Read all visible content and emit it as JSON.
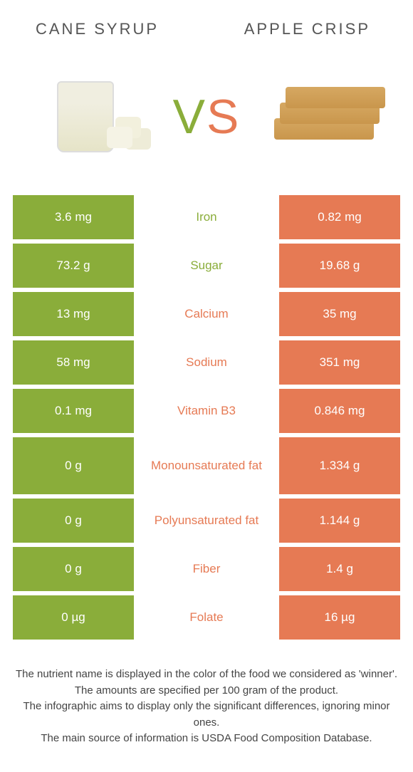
{
  "left_food": "cane syrup",
  "right_food": "Apple crisp",
  "vs_letters": {
    "v": "V",
    "s": "S"
  },
  "colors": {
    "left": "#8aad3a",
    "right": "#e67a54",
    "text": "#555555",
    "footer": "#444444",
    "bg": "#ffffff"
  },
  "rows": [
    {
      "nutrient": "Iron",
      "left": "3.6 mg",
      "right": "0.82 mg",
      "winner": "left",
      "tall": false
    },
    {
      "nutrient": "Sugar",
      "left": "73.2 g",
      "right": "19.68 g",
      "winner": "left",
      "tall": false
    },
    {
      "nutrient": "Calcium",
      "left": "13 mg",
      "right": "35 mg",
      "winner": "right",
      "tall": false
    },
    {
      "nutrient": "Sodium",
      "left": "58 mg",
      "right": "351 mg",
      "winner": "right",
      "tall": false
    },
    {
      "nutrient": "Vitamin B3",
      "left": "0.1 mg",
      "right": "0.846 mg",
      "winner": "right",
      "tall": false
    },
    {
      "nutrient": "Monounsaturated fat",
      "left": "0 g",
      "right": "1.334 g",
      "winner": "right",
      "tall": true
    },
    {
      "nutrient": "Polyunsaturated fat",
      "left": "0 g",
      "right": "1.144 g",
      "winner": "right",
      "tall": false
    },
    {
      "nutrient": "Fiber",
      "left": "0 g",
      "right": "1.4 g",
      "winner": "right",
      "tall": false
    },
    {
      "nutrient": "Folate",
      "left": "0 µg",
      "right": "16 µg",
      "winner": "right",
      "tall": false
    }
  ],
  "footer_lines": [
    "The nutrient name is displayed in the color of the food we considered as 'winner'.",
    "The amounts are specified per 100 gram of the product.",
    "The infographic aims to display only the significant differences, ignoring minor ones.",
    "The main source of information is USDA Food Composition Database."
  ]
}
